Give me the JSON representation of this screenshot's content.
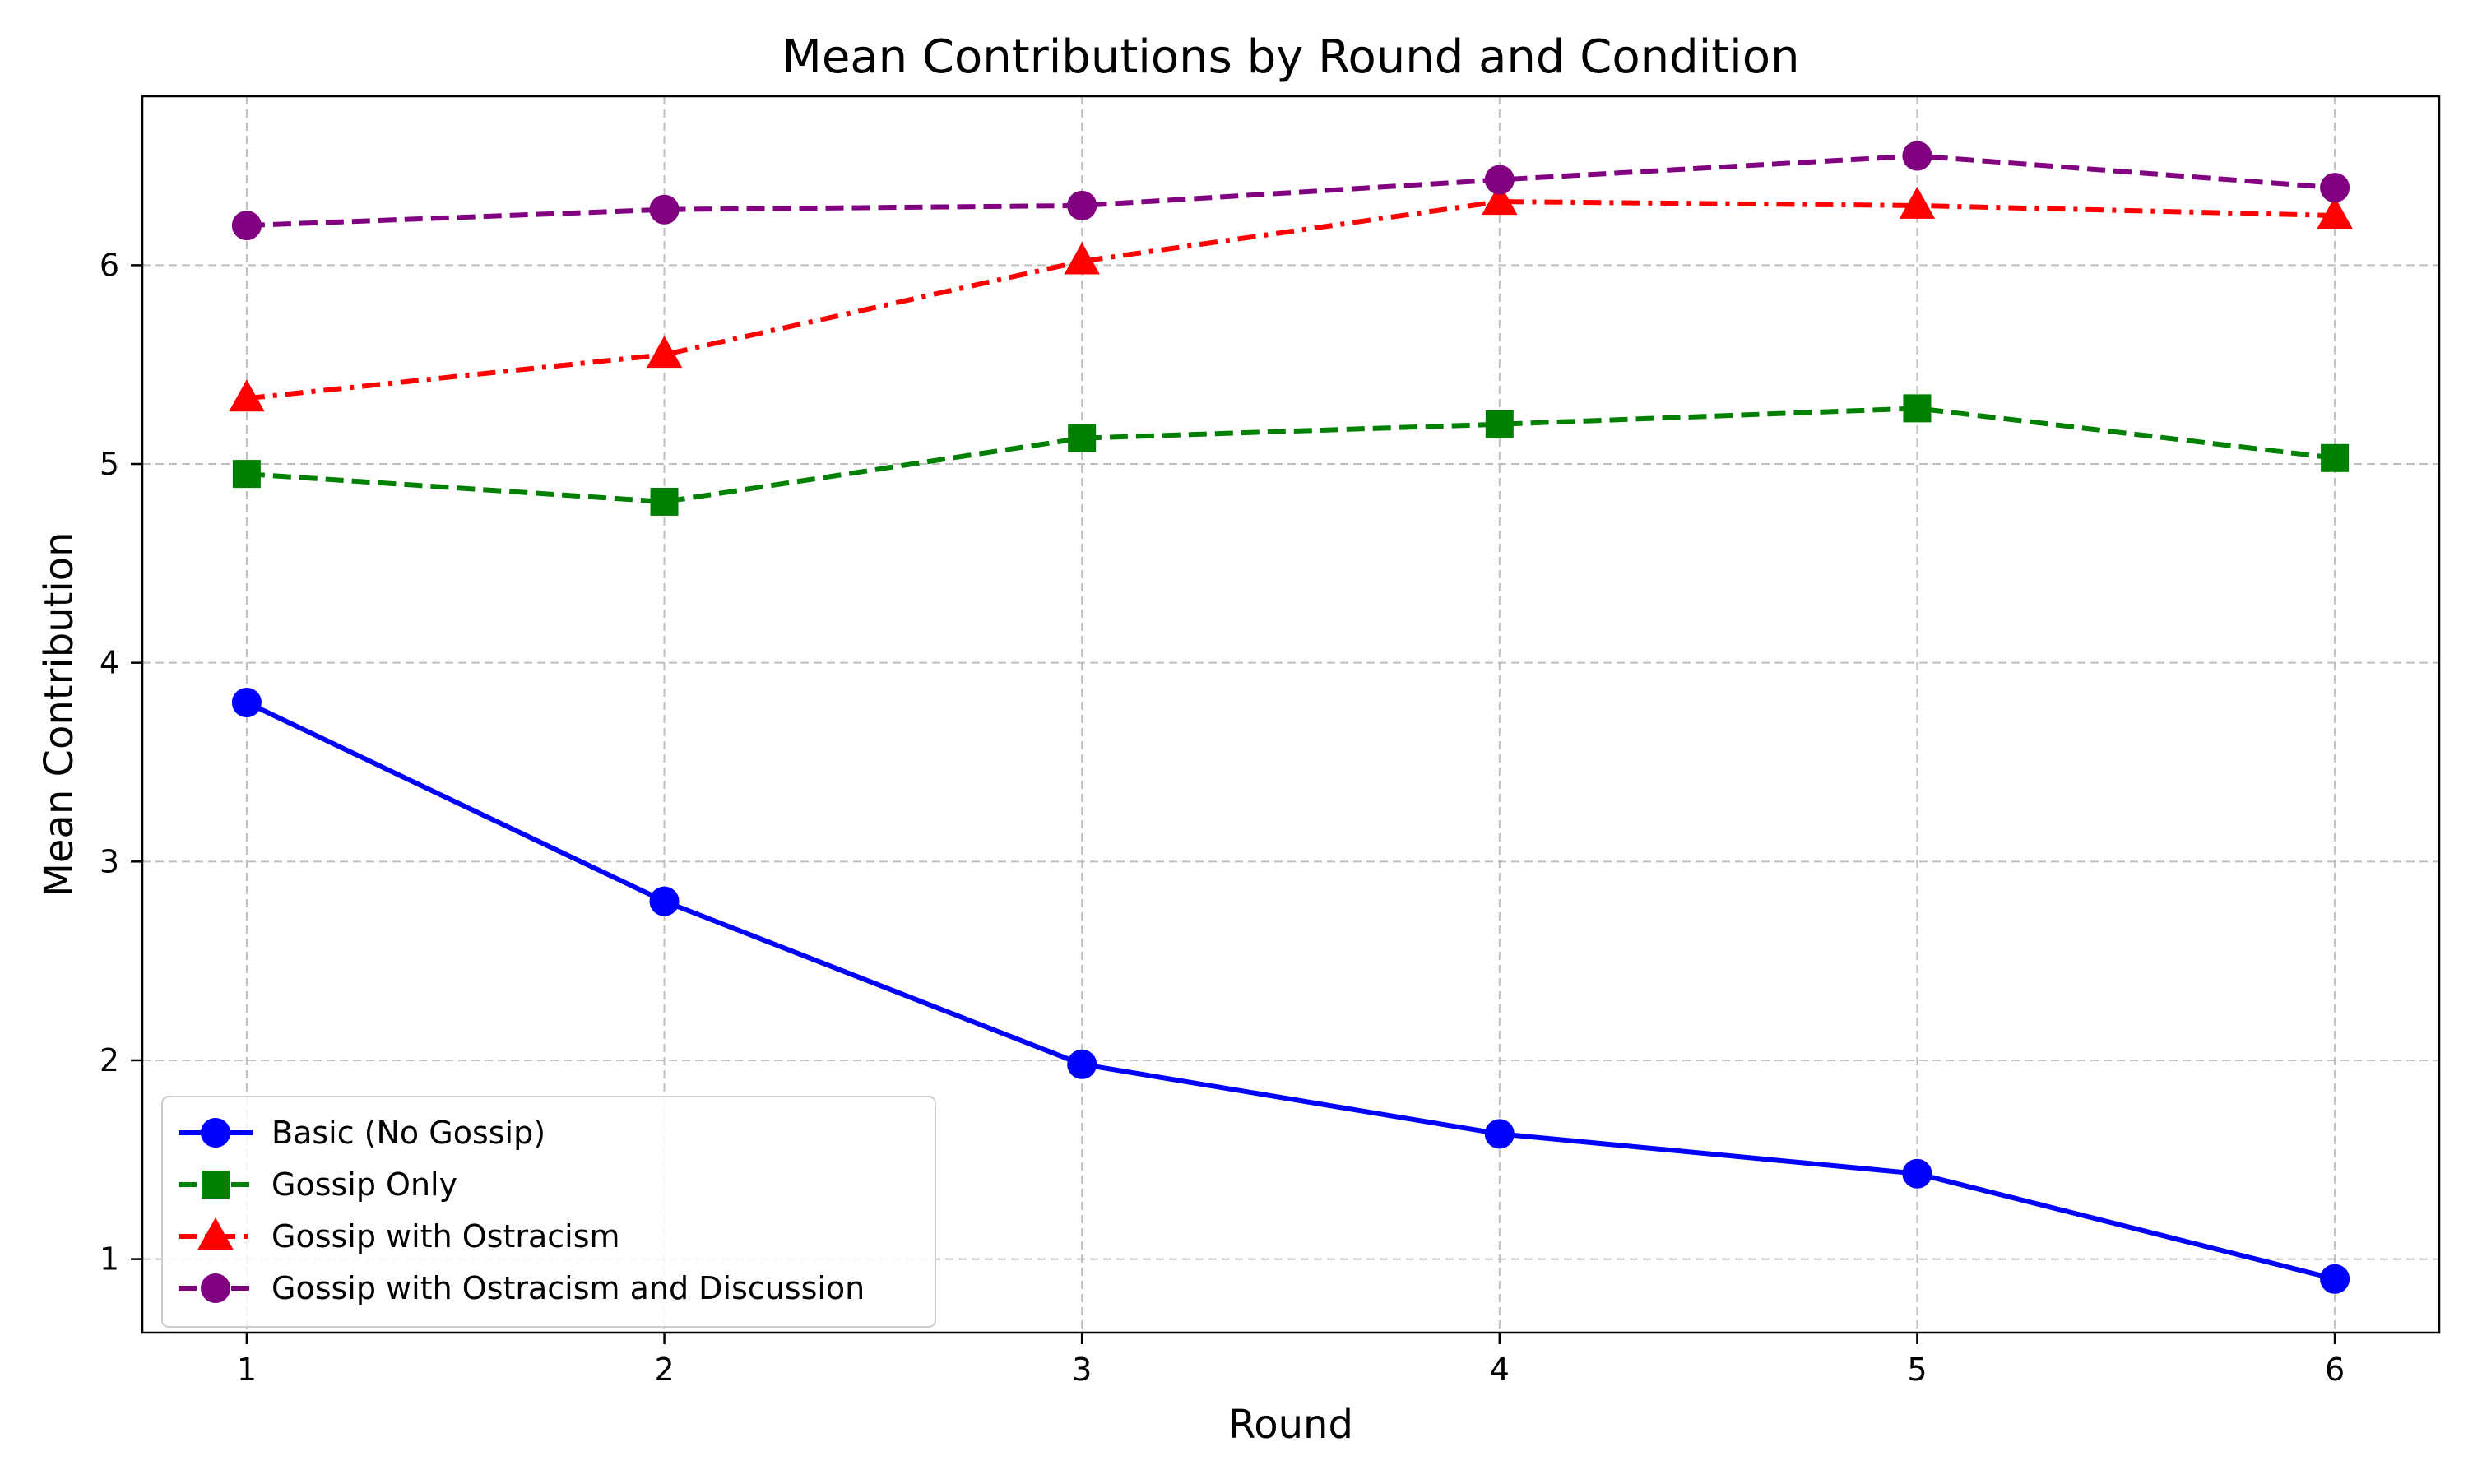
{
  "chart_data": {
    "type": "line",
    "title": "Mean Contributions by Round and Condition",
    "xlabel": "Round",
    "ylabel": "Mean Contribution",
    "x": [
      1,
      2,
      3,
      4,
      5,
      6
    ],
    "xlim": [
      0.75,
      6.25
    ],
    "ylim": [
      0.63,
      6.85
    ],
    "xticks": [
      1,
      2,
      3,
      4,
      5,
      6
    ],
    "yticks": [
      1,
      2,
      3,
      4,
      5,
      6
    ],
    "grid": true,
    "legend_position": "lower-left",
    "series": [
      {
        "name": "Basic (No Gossip)",
        "values": [
          3.8,
          2.8,
          1.98,
          1.63,
          1.43,
          0.9
        ],
        "color": "#0000ff",
        "marker": "circle",
        "line_style": "solid"
      },
      {
        "name": "Gossip Only",
        "values": [
          4.95,
          4.81,
          5.13,
          5.2,
          5.28,
          5.03
        ],
        "color": "#008000",
        "marker": "square",
        "line_style": "dashed"
      },
      {
        "name": "Gossip with Ostracism",
        "values": [
          5.33,
          5.55,
          6.02,
          6.32,
          6.3,
          6.25
        ],
        "color": "#ff0000",
        "marker": "triangle",
        "line_style": "dash-dot"
      },
      {
        "name": "Gossip with Ostracism and Discussion",
        "values": [
          6.2,
          6.28,
          6.3,
          6.43,
          6.55,
          6.39
        ],
        "color": "#800080",
        "marker": "circle",
        "line_style": "dashed"
      }
    ]
  }
}
